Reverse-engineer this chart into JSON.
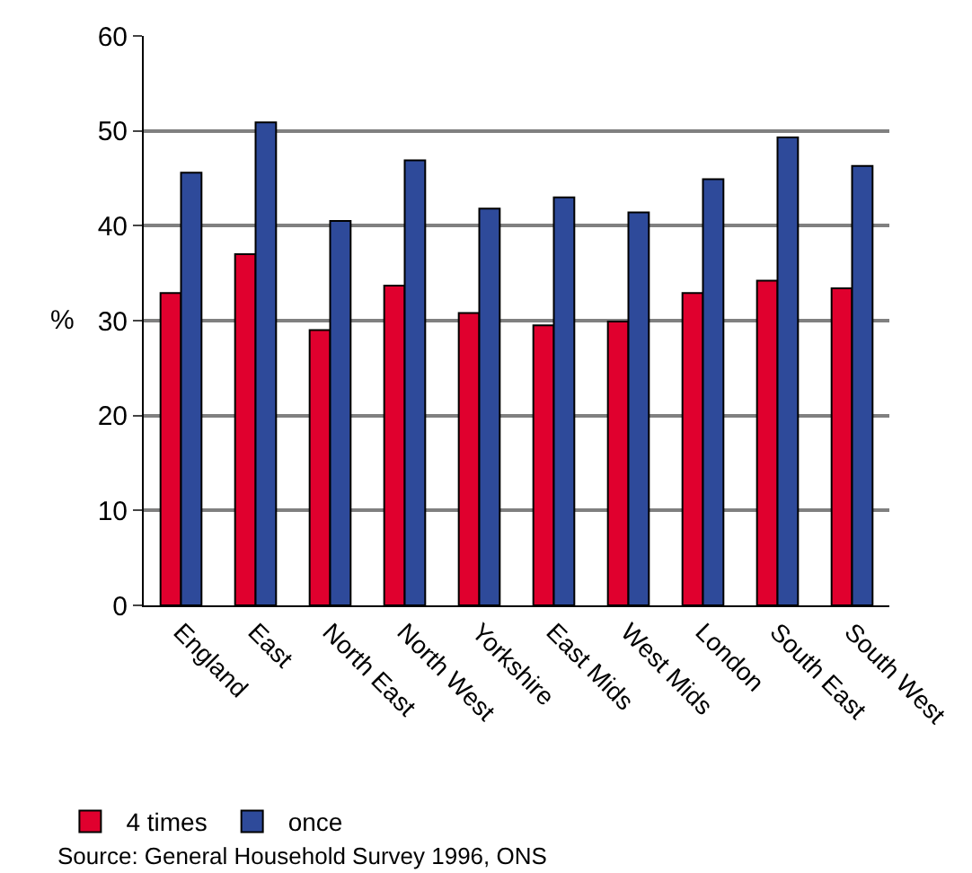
{
  "chart_data": {
    "type": "bar",
    "categories": [
      "England",
      "East",
      "North East",
      "North West",
      "Yorkshire",
      "East Mids",
      "West Mids",
      "London",
      "South East",
      "South West"
    ],
    "series": [
      {
        "name": "4 times",
        "color": "#e0002e",
        "values": [
          32.9,
          37.0,
          29.0,
          33.7,
          30.8,
          29.5,
          29.9,
          32.9,
          34.2,
          33.4
        ]
      },
      {
        "name": "once",
        "color": "#2e4a9a",
        "values": [
          45.6,
          50.9,
          40.5,
          46.9,
          41.8,
          43.0,
          41.4,
          44.9,
          49.3,
          46.3
        ]
      }
    ],
    "ylabel": "%",
    "ylim": [
      0,
      60
    ],
    "yticks": [
      0,
      10,
      20,
      30,
      40,
      50,
      60
    ],
    "grid": "y",
    "legend": "bottom left",
    "annotations": [
      "Source: General Household Survey 1996, ONS"
    ]
  }
}
